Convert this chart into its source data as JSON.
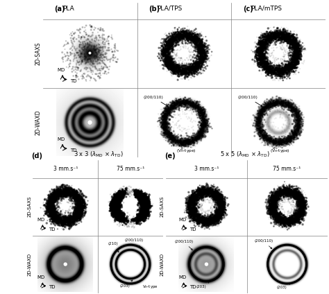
{
  "col_labels_top": [
    "PLA",
    "PLA/TPS",
    "PLA/mTPS"
  ],
  "row_labels_top": [
    "2D-SAXS",
    "2D-WAXD"
  ],
  "col_labels_d": [
    "3 mm.s⁻¹",
    "75 mm.s⁻¹"
  ],
  "col_labels_e": [
    "3 mm.s⁻¹",
    "75 mm.s⁻¹"
  ],
  "row_labels_de": [
    "2D-SAXS",
    "2D-WAXD"
  ],
  "title_d": "3 x 3 (λ_MD × λ_TD)",
  "title_e": "5 x 5 (λ_MD × λ_TD)",
  "bg_color": "#f0f0f0"
}
